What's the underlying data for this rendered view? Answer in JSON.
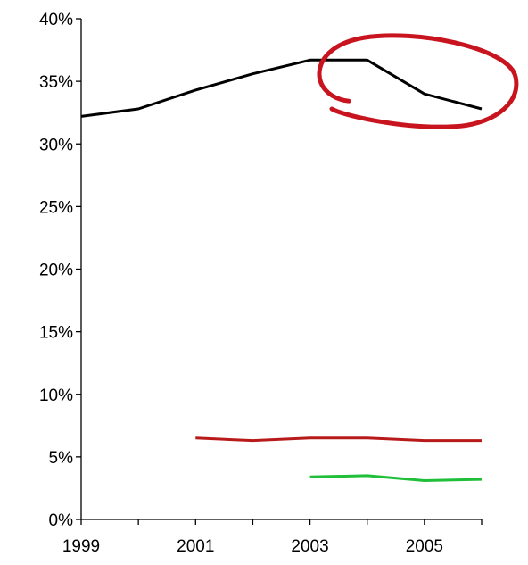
{
  "chart_data": {
    "type": "line",
    "title": "",
    "xlabel": "",
    "ylabel": "",
    "x": [
      1999,
      2000,
      2001,
      2002,
      2003,
      2004,
      2005,
      2006
    ],
    "x_tick_labels": [
      "1999",
      "2001",
      "2003",
      "2005"
    ],
    "y_tick_labels": [
      "0%",
      "5%",
      "10%",
      "15%",
      "20%",
      "25%",
      "30%",
      "35%",
      "40%"
    ],
    "ylim": [
      0,
      40
    ],
    "grid": false,
    "legend": "none",
    "series": [
      {
        "color": "#000000",
        "values": [
          32.2,
          32.8,
          34.3,
          35.6,
          36.7,
          36.7,
          34.0,
          32.8
        ]
      },
      {
        "color": "#b81a1a",
        "values": [
          null,
          null,
          6.5,
          6.3,
          6.5,
          6.5,
          6.3,
          6.3
        ]
      },
      {
        "color": "#1fbf3a",
        "values": [
          null,
          null,
          null,
          null,
          3.4,
          3.5,
          3.1,
          3.2
        ]
      }
    ],
    "annotation": {
      "shape": "hand-drawn-ellipse",
      "color": "#c8141e",
      "target_x": [
        2003.3,
        2006
      ],
      "target_y": [
        32.8,
        36.7
      ]
    }
  }
}
